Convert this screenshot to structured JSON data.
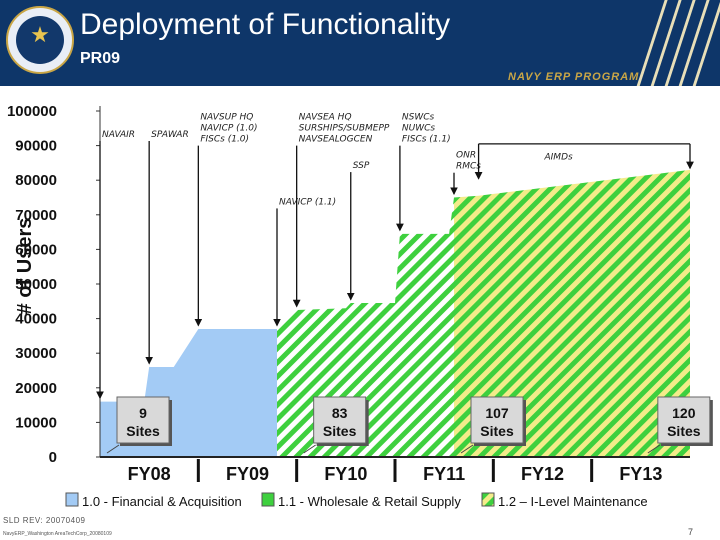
{
  "header": {
    "title": "Deployment of Functionality",
    "subtitle": "PR09",
    "brand": "NAVY ERP PROGRAM",
    "seal_icon": "navy-seal-icon"
  },
  "colors": {
    "header_bg": "#0e3669",
    "brand_gold": "#c9a646",
    "release_1_0": "#a3cbf5",
    "release_1_1": "#3ed03e",
    "release_1_2": "#f3ec8a"
  },
  "chart_data": {
    "type": "area",
    "ylabel": "# of Users",
    "ylim": [
      0,
      100000
    ],
    "yticks": [
      "0",
      "10000",
      "20000",
      "30000",
      "40000",
      "50000",
      "60000",
      "70000",
      "80000",
      "90000",
      "100000"
    ],
    "fiscal_years": [
      "FY08",
      "FY09",
      "FY10",
      "FY11",
      "FY12",
      "FY13"
    ],
    "x_range": [
      0,
      6
    ],
    "series": [
      {
        "name": "1.0 - Financial & Acquisition",
        "color": "#a3cbf5",
        "points": [
          [
            0,
            0
          ],
          [
            0,
            16000
          ],
          [
            0.45,
            16000
          ],
          [
            0.5,
            26000
          ],
          [
            0.75,
            26000
          ],
          [
            1.0,
            37000
          ],
          [
            1.8,
            37000
          ]
        ]
      },
      {
        "name": "1.1 - Wholesale & Retail Supply",
        "color": "#3ed03e",
        "alt": "#ffffff",
        "points": [
          [
            1.8,
            37000
          ],
          [
            2.0,
            42500
          ],
          [
            2.5,
            43000
          ],
          [
            2.55,
            44500
          ],
          [
            3.0,
            44500
          ],
          [
            3.05,
            64500
          ],
          [
            3.55,
            64500
          ],
          [
            3.6,
            75000
          ]
        ]
      },
      {
        "name": "1.2 – I-Level Maintenance",
        "color": "#f3ec8a",
        "alt": "#3ed03e",
        "points": [
          [
            3.6,
            75000
          ],
          [
            3.85,
            75500
          ],
          [
            6.0,
            83000
          ]
        ]
      }
    ],
    "annotations": [
      {
        "lines": [
          "NAVAIR"
        ],
        "x": 0.0,
        "y_text": 92500,
        "y_arrow": 16500
      },
      {
        "lines": [
          "SPAWAR"
        ],
        "x": 0.5,
        "y_text": 92500,
        "y_arrow": 26500
      },
      {
        "lines": [
          "NAVSUP HQ",
          "NAVICP (1.0)",
          "FISCs (1.0)"
        ],
        "x": 1.0,
        "y_text": 97500,
        "y_arrow": 37500
      },
      {
        "lines": [
          "NAVICP (1.1)"
        ],
        "x": 1.8,
        "y_text": 73000,
        "y_arrow": 37500
      },
      {
        "lines": [
          "NAVSEA HQ",
          "SURSHIPS/SUBMEPP",
          "NAVSEALOGCEN"
        ],
        "x": 2.0,
        "y_text": 97500,
        "y_arrow": 43000
      },
      {
        "lines": [
          "SSP"
        ],
        "x": 2.55,
        "y_text": 83500,
        "y_arrow": 45000
      },
      {
        "lines": [
          "NSWCs",
          "NUWCs",
          "FISCs (1.1)"
        ],
        "x": 3.05,
        "y_text": 97500,
        "y_arrow": 65000
      },
      {
        "lines": [
          "ONR",
          "RMCs"
        ],
        "x": 3.6,
        "y_text": 86500,
        "y_arrow": 75500
      },
      {
        "lines": [
          "AIMDs"
        ],
        "x": 4.5,
        "y_text": 86000,
        "y_arrow": null,
        "bracket": [
          3.85,
          6.0
        ],
        "bracket_y": [
          80500,
          85500,
          90500,
          83500
        ]
      }
    ],
    "site_boxes": [
      {
        "count": "9",
        "label": "Sites",
        "x": 0.0
      },
      {
        "count": "83",
        "label": "Sites",
        "x": 2.0
      },
      {
        "count": "107",
        "label": "Sites",
        "x": 3.6
      },
      {
        "count": "120",
        "label": "Sites",
        "x": 5.5
      }
    ],
    "legend_placement": "bottom"
  },
  "footer": {
    "revision": "SLD REV: 20070409",
    "filename": "NavyERP_Washington AreaTechCorp_20080109",
    "page": "7"
  }
}
